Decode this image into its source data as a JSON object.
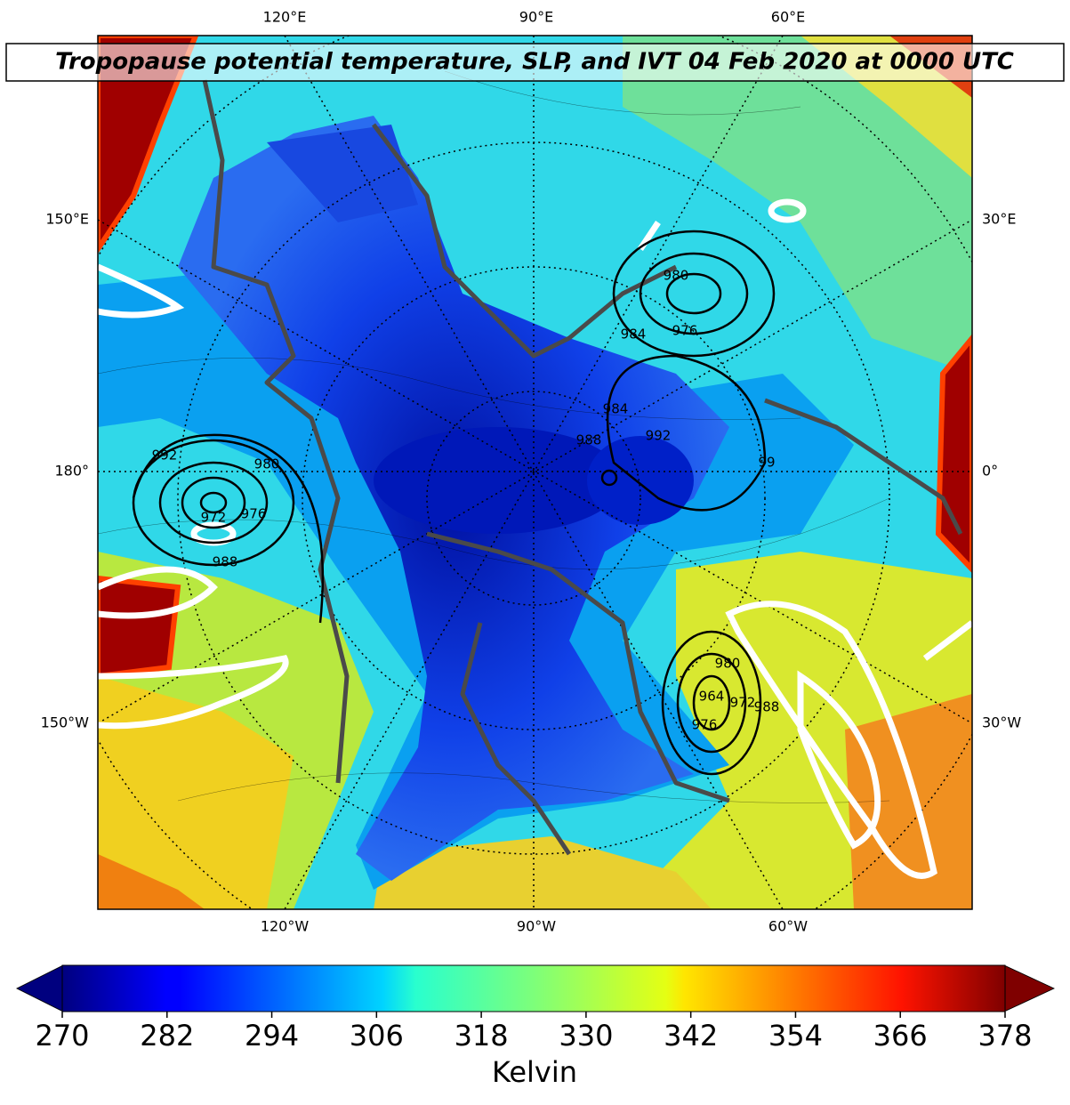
{
  "map": {
    "title": "Tropopause potential temperature, SLP, and IVT 04 Feb 2020 at 0000 UTC",
    "meridian_labels": {
      "top": [
        "120°E",
        "90°E",
        "60°E"
      ],
      "left": [
        "150°E",
        "180°",
        "150°W"
      ],
      "bottom": [
        "120°W",
        "90°W",
        "60°W"
      ],
      "right": [
        "30°E",
        "0°",
        "30°W"
      ]
    },
    "slp_labels": [
      "992",
      "980",
      "976",
      "972",
      "988",
      "980",
      "976",
      "984",
      "984",
      "988",
      "992",
      "99",
      "980",
      "964",
      "976",
      "988",
      "972"
    ]
  },
  "colorbar": {
    "colormap": "jet",
    "range": [
      270,
      378
    ],
    "ticks": [
      270,
      282,
      294,
      306,
      318,
      330,
      342,
      354,
      366,
      378
    ],
    "label": "Kelvin"
  }
}
